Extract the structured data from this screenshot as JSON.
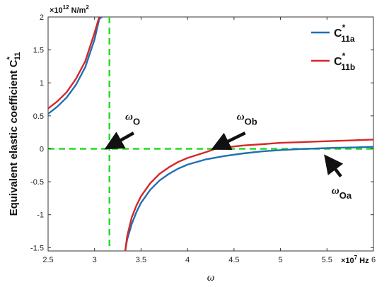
{
  "chart_data": {
    "type": "line",
    "ylabel": "Equivalent elastic coefficient",
    "ylabel_symbol": "C",
    "ylabel_sup": "*",
    "ylabel_sub": "11",
    "xlabel": "ω",
    "x_exponent_label": "×10",
    "x_exponent_power": "7",
    "x_unit": " Hz",
    "y_exponent_label": "×10",
    "y_exponent_power": "12",
    "y_unit": " N/m",
    "y_unit_power": "2",
    "xlim": [
      2.5,
      6.0
    ],
    "ylim": [
      -1.55,
      2.0
    ],
    "xticks": [
      2.5,
      3,
      3.5,
      4,
      4.5,
      5,
      5.5,
      6
    ],
    "xtick_labels": [
      "2.5",
      "3",
      "3.5",
      "4",
      "4.5",
      "5",
      "5.5",
      "6"
    ],
    "yticks": [
      -1.5,
      -1,
      -0.5,
      0,
      0.5,
      1,
      1.5,
      2
    ],
    "ytick_labels": [
      "-1.5",
      "-1",
      "-0.5",
      "0",
      "0.5",
      "1",
      "1.5",
      "2"
    ],
    "grid": false,
    "legend_position": "top-right",
    "series": [
      {
        "name": "C11a",
        "label_base": "C",
        "label_sup": "*",
        "label_sub": "11a",
        "color": "#1f6fb5",
        "x": [
          2.5,
          2.6,
          2.7,
          2.8,
          2.9,
          3.0,
          3.05,
          3.08,
          3.33,
          3.35,
          3.4,
          3.45,
          3.5,
          3.6,
          3.7,
          3.8,
          3.9,
          4.0,
          4.2,
          4.4,
          4.6,
          4.8,
          5.0,
          5.2,
          5.4,
          5.6,
          5.8,
          6.0
        ],
        "y": [
          0.53,
          0.64,
          0.78,
          0.97,
          1.24,
          1.66,
          1.97,
          2.0,
          -1.55,
          -1.38,
          -1.14,
          -0.96,
          -0.82,
          -0.62,
          -0.48,
          -0.38,
          -0.3,
          -0.24,
          -0.16,
          -0.11,
          -0.07,
          -0.04,
          -0.02,
          -0.005,
          0.005,
          0.015,
          0.02,
          0.03
        ]
      },
      {
        "name": "C11b",
        "label_base": "C",
        "label_sup": "*",
        "label_sub": "11b",
        "color": "#d62728",
        "x": [
          2.5,
          2.6,
          2.7,
          2.8,
          2.9,
          3.0,
          3.05,
          3.06,
          3.33,
          3.35,
          3.4,
          3.45,
          3.5,
          3.6,
          3.7,
          3.8,
          3.9,
          4.0,
          4.2,
          4.3,
          4.4,
          4.6,
          4.8,
          5.0,
          5.2,
          5.4,
          5.6,
          5.8,
          6.0
        ],
        "y": [
          0.61,
          0.72,
          0.86,
          1.06,
          1.33,
          1.76,
          2.0,
          2.0,
          -1.55,
          -1.33,
          -1.04,
          -0.86,
          -0.72,
          -0.52,
          -0.38,
          -0.28,
          -0.2,
          -0.14,
          -0.05,
          0.0,
          0.02,
          0.05,
          0.07,
          0.09,
          0.1,
          0.11,
          0.12,
          0.13,
          0.14
        ]
      }
    ],
    "reference_lines": [
      {
        "axis": "x",
        "value": 3.16,
        "color": "#22dd22",
        "style": "dashed"
      },
      {
        "axis": "y",
        "value": 0,
        "color": "#22dd22",
        "style": "dashed"
      }
    ],
    "annotations": [
      {
        "text_base": "ω",
        "text_sub": "O",
        "x": 3.33,
        "y": 0.44,
        "arrow_from": [
          3.42,
          0.24
        ],
        "arrow_to": [
          3.18,
          0.05
        ]
      },
      {
        "text_base": "ω",
        "text_sub": "Ob",
        "x": 4.53,
        "y": 0.44,
        "arrow_from": [
          4.62,
          0.24
        ],
        "arrow_to": [
          4.33,
          0.04
        ]
      },
      {
        "text_base": "ω",
        "text_sub": "Oa",
        "x": 5.55,
        "y": -0.68,
        "arrow_from": [
          5.65,
          -0.42
        ],
        "arrow_to": [
          5.52,
          -0.18
        ]
      }
    ]
  }
}
